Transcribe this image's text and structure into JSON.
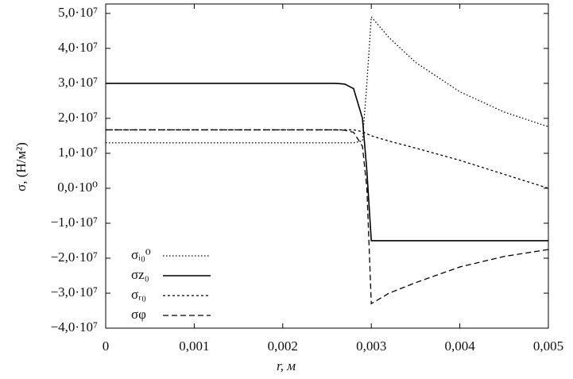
{
  "chart_data": {
    "type": "line",
    "x_label": "r, м",
    "y_label": "σ, (Н/м²)",
    "xlim": [
      0,
      0.005
    ],
    "ylim": [
      -40000000,
      52700000
    ],
    "xticks": [
      0,
      {
        "value": 0.001,
        "label": "0,001"
      },
      {
        "value": 0.002,
        "label": "0,002"
      },
      {
        "value": 0.003,
        "label": "0,003"
      },
      {
        "value": 0.004,
        "label": "0,004"
      },
      {
        "value": 0.005,
        "label": "0,005"
      }
    ],
    "yticks": [
      {
        "value": -40000000,
        "label": "−4,0·10⁷"
      },
      {
        "value": -30000000,
        "label": "−3,0·10⁷"
      },
      {
        "value": -20000000,
        "label": "−2,0·10⁷"
      },
      {
        "value": -10000000,
        "label": "−1,0·10⁷"
      },
      {
        "value": 0,
        "label": "0,0·10⁰"
      },
      {
        "value": 10000000,
        "label": "1,0·10⁷"
      },
      {
        "value": 20000000,
        "label": "2,0·10⁷"
      },
      {
        "value": 30000000,
        "label": "3,0·10⁷"
      },
      {
        "value": 40000000,
        "label": "4,0·10⁷"
      },
      {
        "value": 50000000,
        "label": "5,0·10⁷"
      }
    ],
    "x": [
      0,
      0.001,
      0.002,
      0.0025,
      0.0026,
      0.0027,
      0.0028,
      0.0029,
      0.00295,
      0.003,
      0.0032,
      0.0035,
      0.004,
      0.0045,
      0.005
    ],
    "legend": "lower left",
    "series": [
      {
        "name": "σᵢ₀⁰",
        "color": "#000000",
        "dash": "1.5,2.5",
        "values": [
          13000000,
          13000000,
          13000000,
          13000000,
          13000000,
          13000000,
          13000000,
          13500000,
          30000000,
          49000000,
          43100000,
          36000000,
          27600000,
          21800000,
          17600000
        ]
      },
      {
        "name": "σz₀",
        "color": "#000000",
        "dash": "none",
        "values": [
          30000000,
          30000000,
          30000000,
          30000000,
          30000000,
          29800000,
          28500000,
          20000000,
          5000000,
          -15000000,
          -15000000,
          -15000000,
          -15000000,
          -15000000,
          -15000000
        ]
      },
      {
        "name": "σᵣ₀",
        "color": "#000000",
        "dash": "3,3",
        "values": [
          16700000,
          16700000,
          16700000,
          16700000,
          16700000,
          16700000,
          16700000,
          16200000,
          15600000,
          15000000,
          13500000,
          11500000,
          8000000,
          4000000,
          0
        ]
      },
      {
        "name": "σφ",
        "color": "#000000",
        "dash": "7,4",
        "values": [
          16700000,
          16700000,
          16700000,
          16700000,
          16700000,
          16600000,
          16000000,
          12000000,
          0,
          -33000000,
          -30000000,
          -27000000,
          -22500000,
          -19500000,
          -17500000
        ]
      }
    ]
  }
}
